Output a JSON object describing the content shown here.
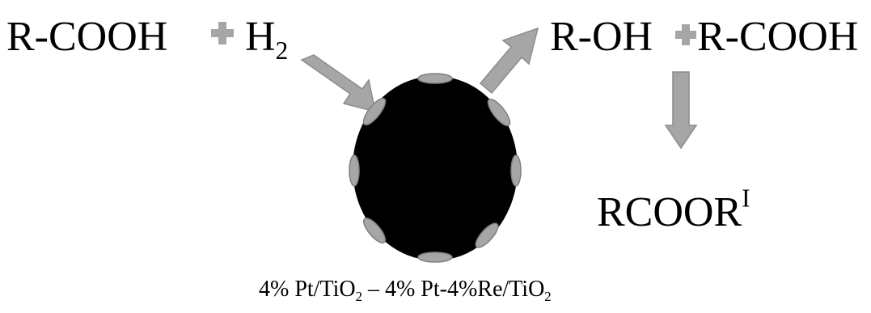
{
  "reactants": {
    "acid": "R-COOH",
    "hydrogen_base": "H",
    "hydrogen_subscript": "2"
  },
  "products": {
    "alcohol": "R-OH",
    "acid": "R-COOH"
  },
  "ester": {
    "base": "RCOOR",
    "superscript": "I"
  },
  "catalyst_caption": {
    "part1": "4% Pt/TiO",
    "sub1": "2",
    "part2": " – 4% Pt-4%Re/TiO",
    "sub2": "2"
  },
  "colors": {
    "text": "#000000",
    "arrow_fill": "#a6a6a6",
    "arrow_stroke": "#8c8c8c",
    "plus_fill": "#a6a6a6",
    "particle": "#000000",
    "metal_site_fill": "#a6a6a6",
    "metal_site_stroke": "#7f7f7f"
  },
  "icons": {
    "plus": "plus-icon",
    "arrow": "block-arrow-icon",
    "particle": "catalyst-particle",
    "site": "metal-nanoparticle"
  }
}
